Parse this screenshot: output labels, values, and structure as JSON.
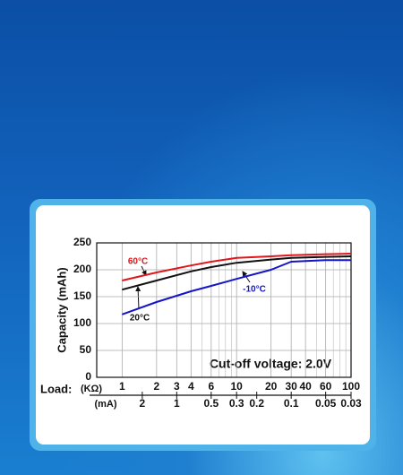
{
  "chart_data": {
    "type": "line",
    "y_label": "Capacity (mAh)",
    "x_label": "Load:",
    "x_unit": "(KΩ)",
    "x2_unit": "(mA)",
    "annotation": "Cut-off voltage: 2.0V",
    "x": [
      1,
      2,
      4,
      6,
      10,
      20,
      30,
      60,
      100
    ],
    "series": [
      {
        "name": "60°C",
        "color": "#e0161b",
        "values": [
          180,
          195,
          208,
          215,
          222,
          225,
          227,
          229,
          230
        ]
      },
      {
        "name": "20°C",
        "color": "#111111",
        "values": [
          163,
          180,
          197,
          205,
          213,
          219,
          222,
          224,
          225
        ]
      },
      {
        "name": "-10°C",
        "color": "#1414c8",
        "values": [
          117,
          140,
          160,
          170,
          183,
          200,
          215,
          218,
          218
        ]
      }
    ],
    "xlim": [
      0.6,
      100
    ],
    "xlog": true,
    "xticks": [
      1,
      2,
      3,
      4,
      6,
      10,
      20,
      30,
      40,
      60,
      100
    ],
    "xminorticks": [
      5,
      7,
      8,
      9,
      50,
      70,
      80,
      90
    ],
    "x2lim": [
      5,
      0.03
    ],
    "x2ticks": [
      2,
      1,
      0.5,
      0.3,
      0.2,
      0.1,
      0.05,
      0.03
    ],
    "ylim": [
      0,
      250
    ],
    "yticks": [
      0,
      50,
      100,
      150,
      200,
      250
    ],
    "grid": true
  }
}
